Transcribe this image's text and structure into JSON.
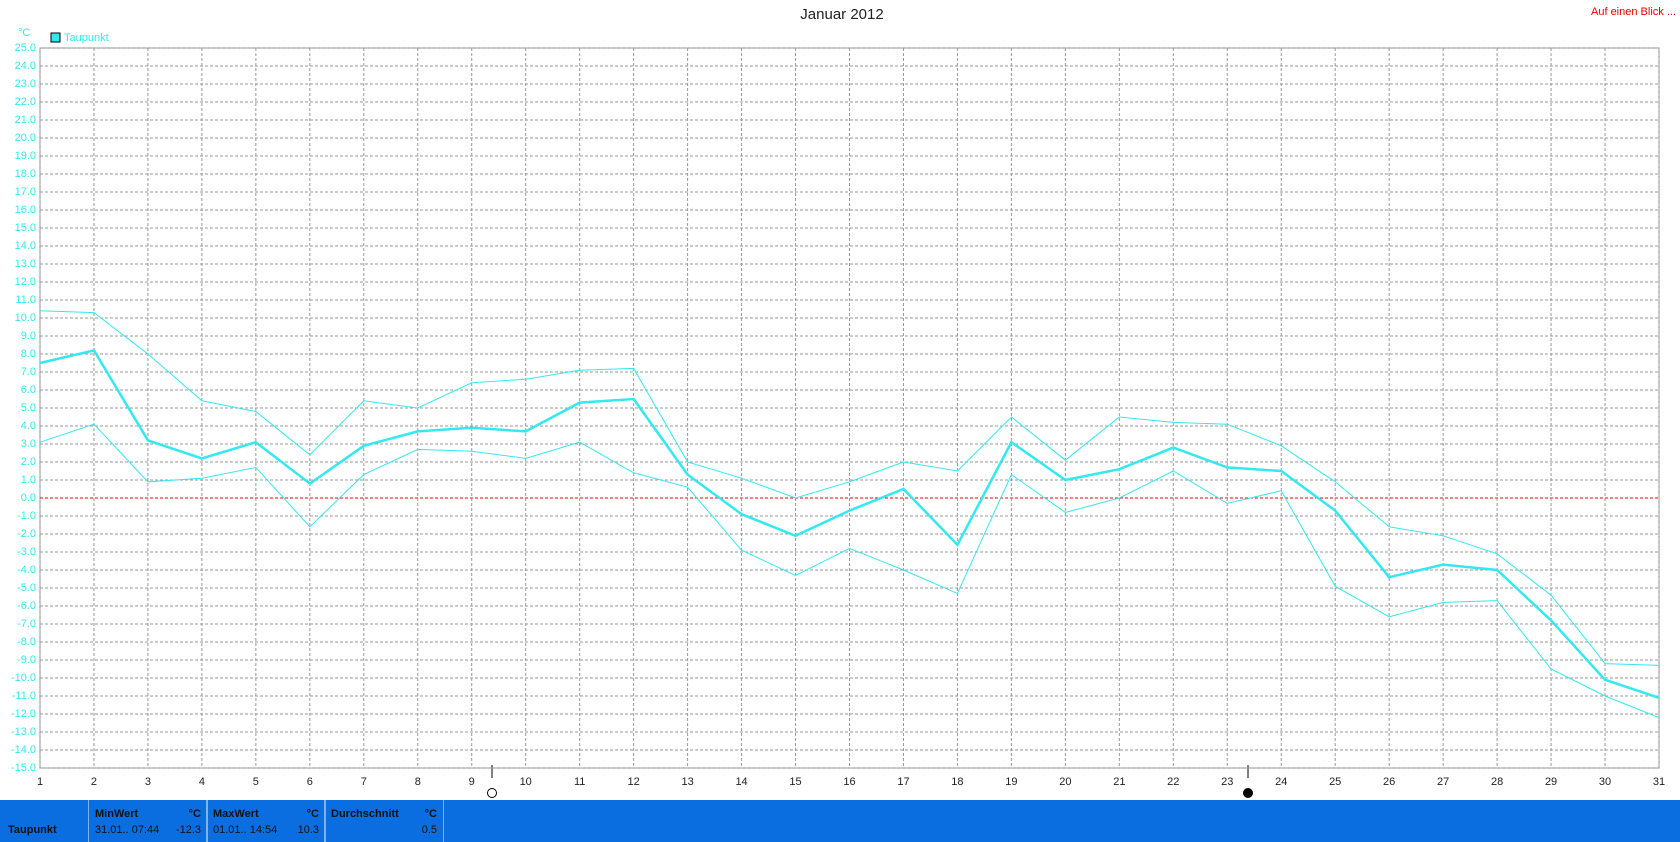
{
  "chart_data": {
    "type": "line",
    "title": "Januar 2012",
    "corner_label": "Auf einen Blick ...",
    "y_unit": "°C",
    "x": [
      1,
      2,
      3,
      4,
      5,
      6,
      7,
      8,
      9,
      10,
      11,
      12,
      13,
      14,
      15,
      16,
      17,
      18,
      19,
      20,
      21,
      22,
      23,
      24,
      25,
      26,
      27,
      28,
      29,
      30,
      31
    ],
    "xlim": [
      1,
      31
    ],
    "xticks": [
      1,
      2,
      3,
      4,
      5,
      6,
      7,
      8,
      9,
      10,
      11,
      12,
      13,
      14,
      15,
      16,
      17,
      18,
      19,
      20,
      21,
      22,
      23,
      24,
      25,
      26,
      27,
      28,
      29,
      30,
      31
    ],
    "ylim": [
      -15,
      25
    ],
    "yticks": [
      {
        "value": -15,
        "label": "-15.0"
      },
      {
        "value": -14,
        "label": "-14.0"
      },
      {
        "value": -13,
        "label": "-13.0"
      },
      {
        "value": -12,
        "label": "-12.0"
      },
      {
        "value": -11,
        "label": "-11.0"
      },
      {
        "value": -10,
        "label": "-10.0"
      },
      {
        "value": -9,
        "label": "-9.0"
      },
      {
        "value": -8,
        "label": "-8.0"
      },
      {
        "value": -7,
        "label": "-7.0"
      },
      {
        "value": -6,
        "label": "-6.0"
      },
      {
        "value": -5,
        "label": "-5.0"
      },
      {
        "value": -4,
        "label": "-4.0"
      },
      {
        "value": -3,
        "label": "-3.0"
      },
      {
        "value": -2,
        "label": "-2.0"
      },
      {
        "value": -1,
        "label": "-1.0"
      },
      {
        "value": 0,
        "label": "0.0"
      },
      {
        "value": 1,
        "label": "1.0"
      },
      {
        "value": 2,
        "label": "2.0"
      },
      {
        "value": 3,
        "label": "3.0"
      },
      {
        "value": 4,
        "label": "4.0"
      },
      {
        "value": 5,
        "label": "5.0"
      },
      {
        "value": 6,
        "label": "6.0"
      },
      {
        "value": 7,
        "label": "7.0"
      },
      {
        "value": 8,
        "label": "8.0"
      },
      {
        "value": 9,
        "label": "9.0"
      },
      {
        "value": 10,
        "label": "10.0"
      },
      {
        "value": 11,
        "label": "11.0"
      },
      {
        "value": 12,
        "label": "12.0"
      },
      {
        "value": 13,
        "label": "13.0"
      },
      {
        "value": 14,
        "label": "14.0"
      },
      {
        "value": 15,
        "label": "15.0"
      },
      {
        "value": 16,
        "label": "16.0"
      },
      {
        "value": 17,
        "label": "17.0"
      },
      {
        "value": 18,
        "label": "18.0"
      },
      {
        "value": 19,
        "label": "19.0"
      },
      {
        "value": 20,
        "label": "20.0"
      },
      {
        "value": 21,
        "label": "21.0"
      },
      {
        "value": 22,
        "label": "22.0"
      },
      {
        "value": 23,
        "label": "23.0"
      },
      {
        "value": 24,
        "label": "24.0"
      },
      {
        "value": 25,
        "label": "25.0"
      }
    ],
    "grid": true,
    "zero_line_color": "#ff0000",
    "legend": "top-left",
    "series": [
      {
        "name": "Taupunkt",
        "color": "#33e8f0",
        "line_width": 2.5,
        "values": [
          7.5,
          8.2,
          3.2,
          2.2,
          3.1,
          0.8,
          2.9,
          3.7,
          3.9,
          3.7,
          5.3,
          5.5,
          1.3,
          -0.9,
          -2.1,
          -0.7,
          0.5,
          -2.6,
          3.1,
          1.0,
          1.6,
          2.8,
          1.7,
          1.5,
          -0.7,
          -4.4,
          -3.7,
          -4.0,
          -6.8,
          -10.1,
          -11.1
        ]
      },
      {
        "color": "#33e8f0",
        "line_width": 1,
        "values": [
          10.4,
          10.3,
          8.0,
          5.4,
          4.8,
          2.4,
          5.4,
          5.0,
          6.4,
          6.6,
          7.1,
          7.2,
          2.0,
          1.1,
          0.0,
          0.9,
          2.0,
          1.5,
          4.5,
          2.1,
          4.5,
          4.2,
          4.1,
          2.9,
          0.9,
          -1.6,
          -2.1,
          -3.1,
          -5.4,
          -9.2,
          -9.3
        ]
      },
      {
        "color": "#33e8f0",
        "line_width": 1,
        "values": [
          3.1,
          4.1,
          0.9,
          1.1,
          1.7,
          -1.6,
          1.3,
          2.7,
          2.6,
          2.2,
          3.1,
          1.4,
          0.6,
          -2.9,
          -4.3,
          -2.8,
          -4.0,
          -5.3,
          1.3,
          -0.8,
          0.0,
          1.5,
          -0.3,
          0.4,
          -4.9,
          -6.6,
          -5.8,
          -5.7,
          -9.5,
          -11.0,
          -12.2
        ]
      }
    ]
  },
  "summary": {
    "row_label": "Taupunkt",
    "cells": [
      {
        "header": "MinWert",
        "unit": "°C",
        "time": "31.01.. 07:44",
        "value": -12.3
      },
      {
        "header": "MaxWert",
        "unit": "°C",
        "time": "01.01.. 14:54",
        "value": 10.3
      },
      {
        "header": "Durchschnitt",
        "unit": "°C",
        "value": 0.5
      }
    ]
  }
}
